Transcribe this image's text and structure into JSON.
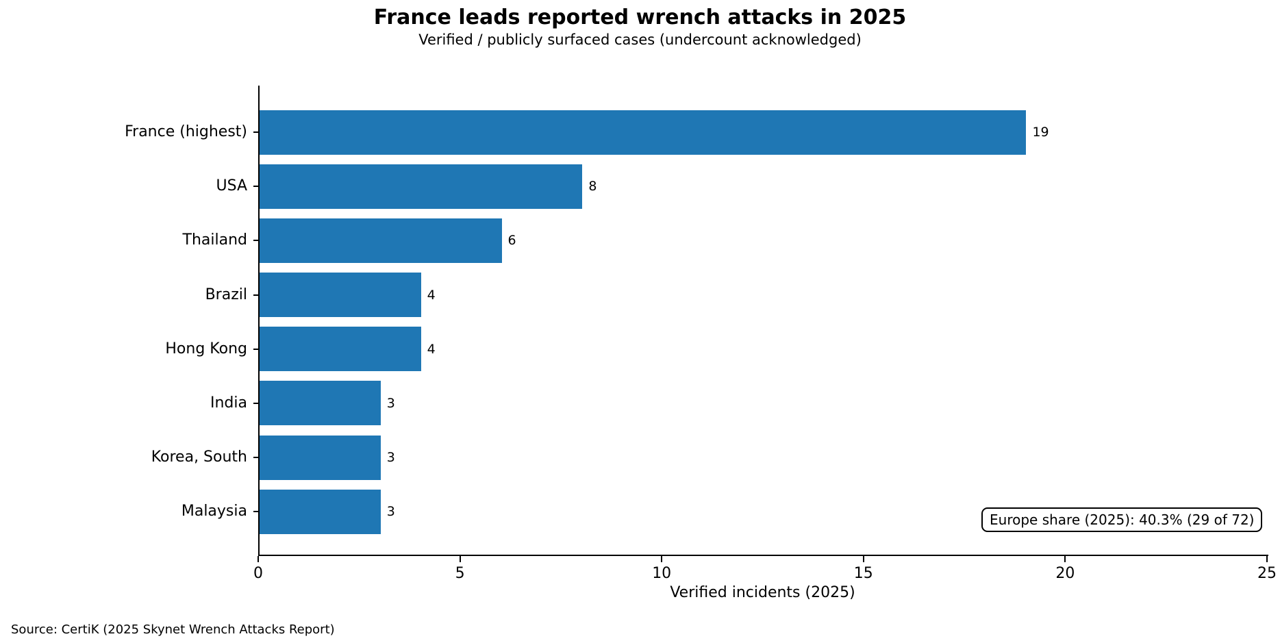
{
  "chart_data": {
    "type": "bar",
    "orientation": "horizontal",
    "title": "France leads reported wrench attacks in 2025",
    "subtitle": "Verified / publicly surfaced cases (undercount acknowledged)",
    "categories": [
      "France (highest)",
      "USA",
      "Thailand",
      "Brazil",
      "Hong Kong",
      "India",
      "Korea, South",
      "Malaysia"
    ],
    "values": [
      19,
      8,
      6,
      4,
      4,
      3,
      3,
      3
    ],
    "xlabel": "Verified incidents (2025)",
    "xlim": [
      0,
      25
    ],
    "xticks": [
      0,
      5,
      10,
      15,
      20,
      25
    ],
    "bar_color": "#1f77b4",
    "grid": false,
    "legend": "none",
    "annotation": "Europe share (2025): 40.3% (29 of 72)",
    "source": "Source: CertiK (2025 Skynet Wrench Attacks Report)"
  }
}
